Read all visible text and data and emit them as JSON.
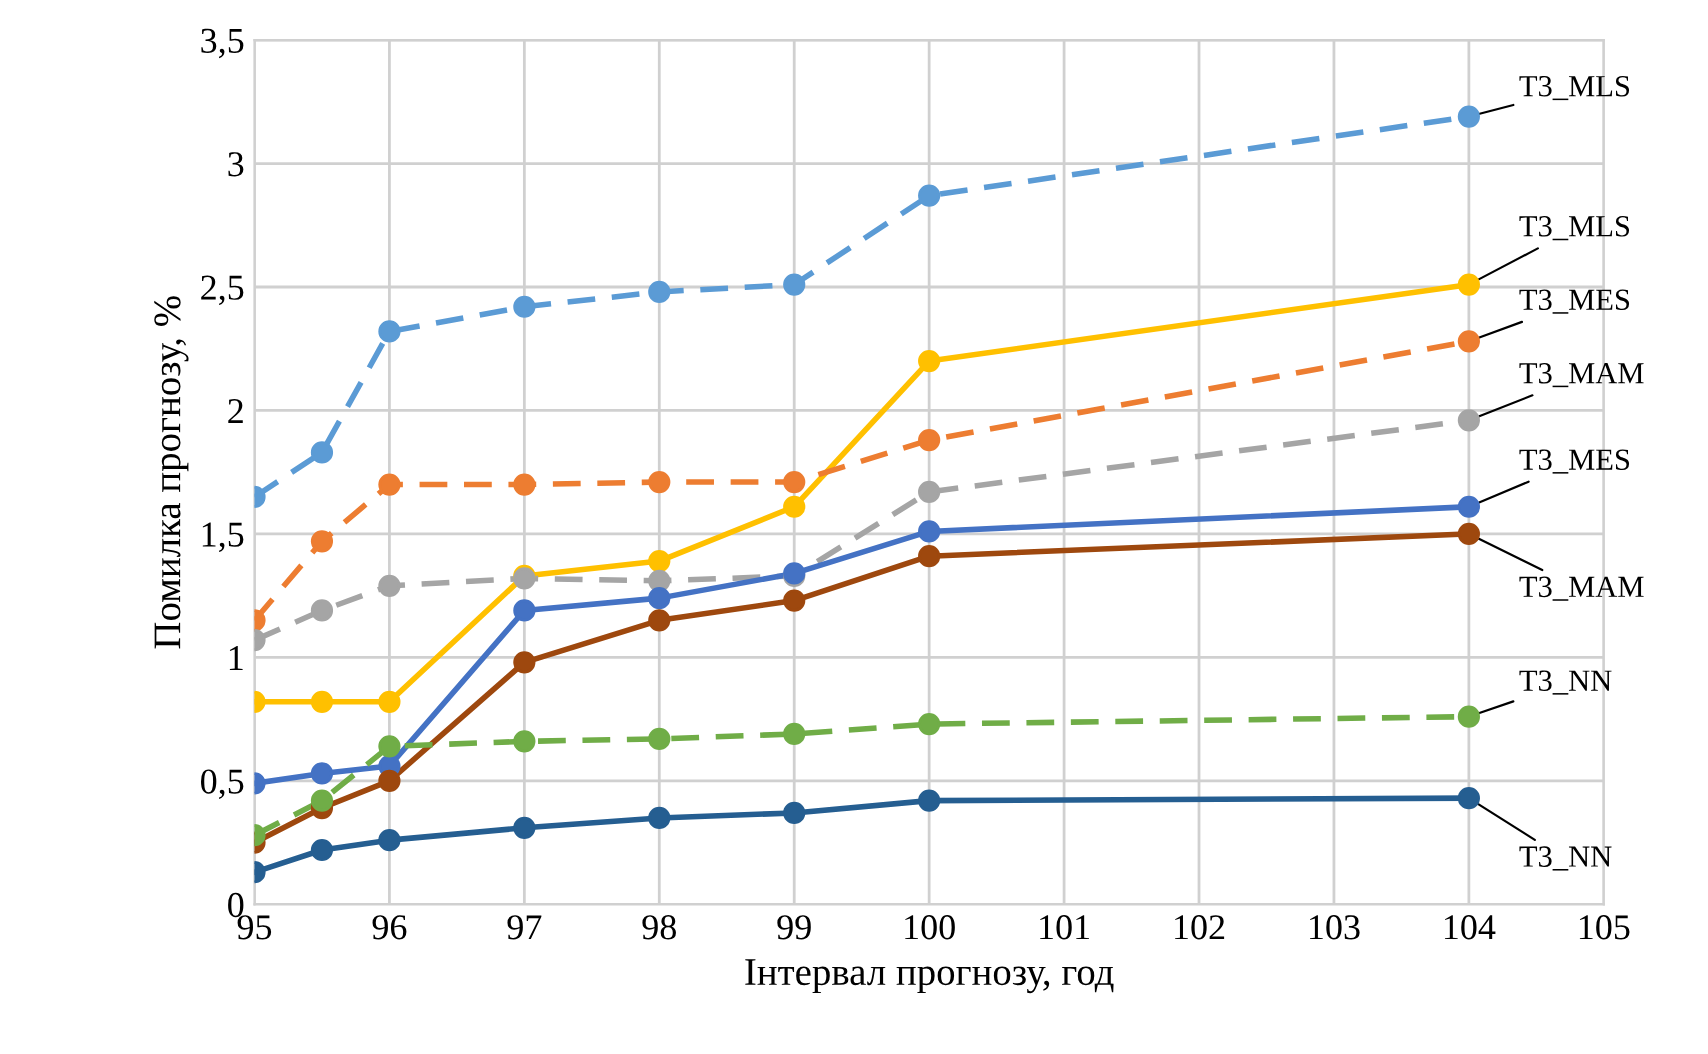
{
  "chart_data": {
    "type": "line",
    "xlabel": "Інтервал прогнозу, год",
    "ylabel": "Помилка прогнозу, %",
    "x": [
      95,
      95.5,
      96,
      97,
      98,
      99,
      100,
      104
    ],
    "series": [
      {
        "name": "T3_MLS",
        "color": "#5b9bd5",
        "line_style": "dashed",
        "values": [
          1.65,
          1.83,
          2.32,
          2.42,
          2.48,
          2.51,
          2.87,
          3.19
        ]
      },
      {
        "name": "T3_MLS",
        "color": "#ffc000",
        "line_style": "solid",
        "values": [
          0.82,
          0.82,
          0.82,
          1.33,
          1.39,
          1.61,
          2.2,
          2.51
        ]
      },
      {
        "name": "T3_MES",
        "color": "#ed7d31",
        "line_style": "dashed",
        "values": [
          1.15,
          1.47,
          1.7,
          1.7,
          1.71,
          1.71,
          1.88,
          2.28
        ]
      },
      {
        "name": "T3_MAM",
        "color": "#a5a5a5",
        "line_style": "dashed",
        "values": [
          1.07,
          1.19,
          1.29,
          1.32,
          1.31,
          1.33,
          1.67,
          1.96
        ]
      },
      {
        "name": "T3_MES",
        "color": "#4472c4",
        "line_style": "solid",
        "values": [
          0.49,
          0.53,
          0.56,
          1.19,
          1.24,
          1.34,
          1.51,
          1.61
        ]
      },
      {
        "name": "T3_MAM",
        "color": "#9e480e",
        "line_style": "solid",
        "values": [
          0.25,
          0.39,
          0.5,
          0.98,
          1.15,
          1.23,
          1.41,
          1.5
        ]
      },
      {
        "name": "T3_NN",
        "color": "#70ad47",
        "line_style": "dashed",
        "values": [
          0.28,
          0.42,
          0.64,
          0.66,
          0.67,
          0.69,
          0.73,
          0.76
        ]
      },
      {
        "name": "T3_NN",
        "color": "#255e91",
        "line_style": "solid",
        "values": [
          0.13,
          0.22,
          0.26,
          0.31,
          0.35,
          0.37,
          0.42,
          0.43
        ]
      }
    ],
    "xlim": [
      95,
      105
    ],
    "xticks": [
      95,
      96,
      97,
      98,
      99,
      100,
      101,
      102,
      103,
      104,
      105
    ],
    "ylim": [
      0,
      3.5
    ],
    "yticks": [
      0,
      {
        "value": 0.5,
        "label": "0,5"
      },
      1,
      {
        "value": 1.5,
        "label": "1,5"
      },
      2,
      {
        "value": 2.5,
        "label": "2,5"
      },
      3,
      {
        "value": 3.5,
        "label": "3,5"
      }
    ],
    "grid": true,
    "legend": false,
    "marker": "circle"
  }
}
